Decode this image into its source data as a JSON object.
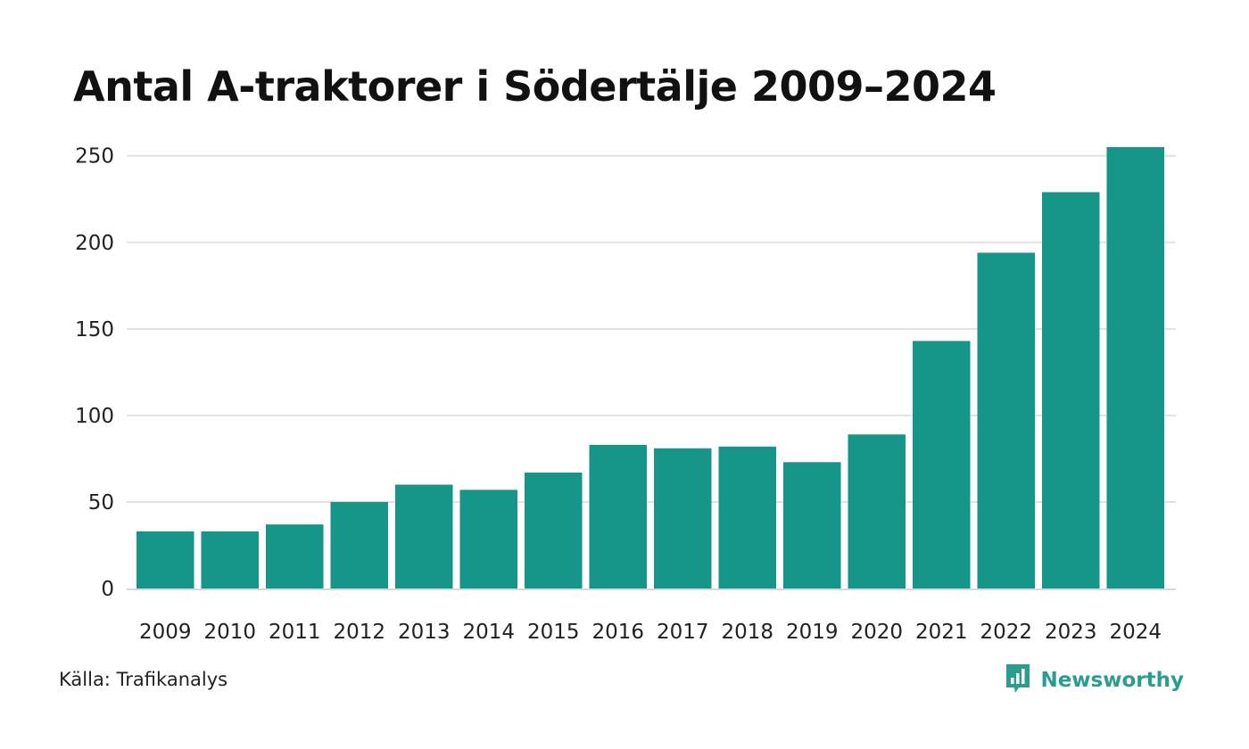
{
  "title": "Antal A-traktorer i Södertälje 2009–2024",
  "source": "Källa: Trafikanalys",
  "brand": {
    "name": "Newsworthy",
    "icon": "newsworthy-logo-icon",
    "color": "#2a9d8f"
  },
  "colors": {
    "bar": "#159688",
    "grid": "#e2e2e6",
    "axis": "#d8d8dc"
  },
  "chart_data": {
    "type": "bar",
    "title": "Antal A-traktorer i Södertälje 2009–2024",
    "xlabel": "",
    "ylabel": "",
    "categories": [
      "2009",
      "2010",
      "2011",
      "2012",
      "2013",
      "2014",
      "2015",
      "2016",
      "2017",
      "2018",
      "2019",
      "2020",
      "2021",
      "2022",
      "2023",
      "2024"
    ],
    "values": [
      33,
      33,
      37,
      50,
      60,
      57,
      67,
      83,
      81,
      82,
      73,
      89,
      143,
      194,
      229,
      255
    ],
    "ylim": [
      0,
      255
    ],
    "yticks": [
      0,
      50,
      100,
      150,
      200,
      250
    ],
    "grid": true,
    "legend": "none"
  }
}
